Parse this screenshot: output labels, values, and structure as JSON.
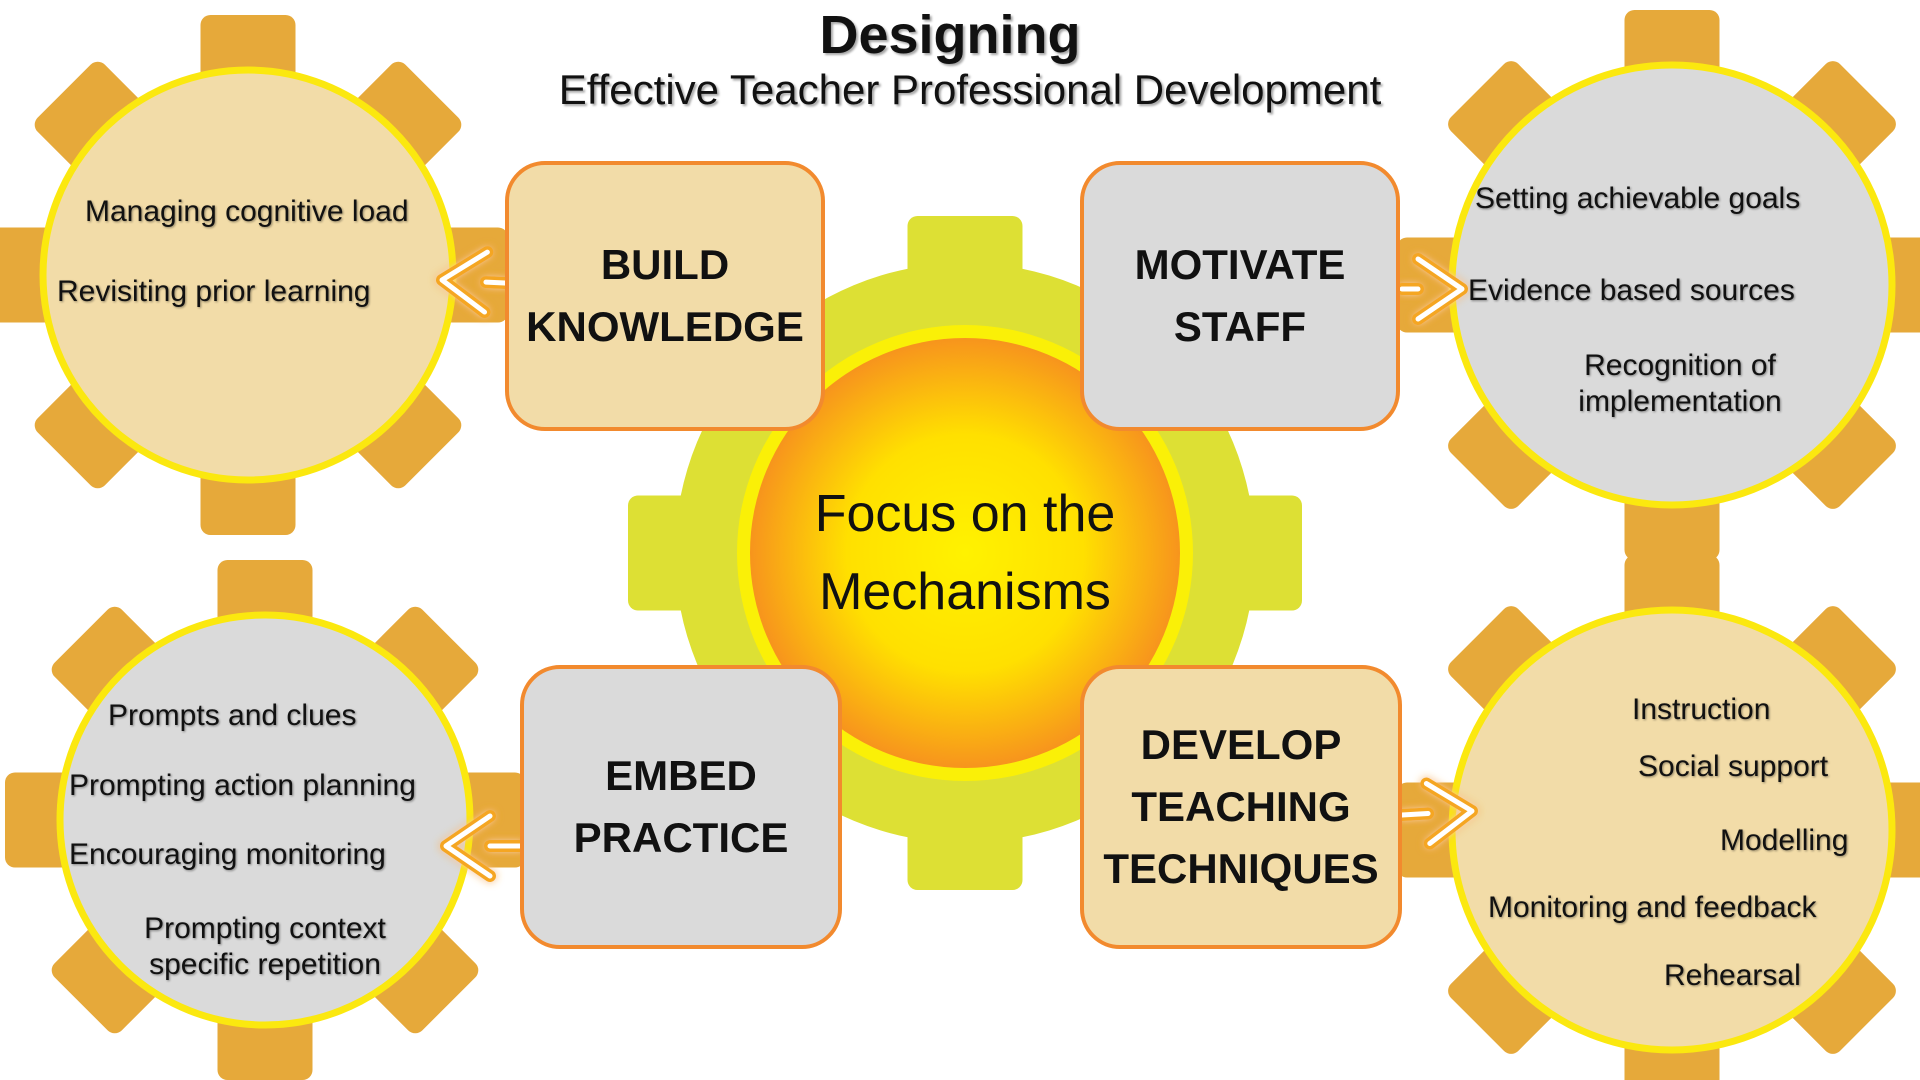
{
  "title": "Designing",
  "subtitle": "Effective Teacher Professional Development",
  "center": {
    "line1": "Focus on the",
    "line2": "Mechanisms"
  },
  "mechanisms": {
    "build": {
      "line1": "BUILD",
      "line2": "KNOWLEDGE",
      "items": [
        "Managing cognitive load",
        "Revisiting prior learning"
      ]
    },
    "motivate": {
      "line1": "MOTIVATE",
      "line2": "STAFF",
      "items": [
        "Setting achievable goals",
        "Evidence based sources",
        "Recognition of implementation"
      ]
    },
    "embed": {
      "line1": "EMBED",
      "line2": "PRACTICE",
      "items": [
        "Prompts and clues",
        "Prompting action planning",
        "Encouraging monitoring",
        "Prompting context specific repetition"
      ]
    },
    "develop": {
      "line1": "DEVELOP",
      "line2": "TEACHING",
      "line3": "TECHNIQUES",
      "items": [
        "Instruction",
        "Social support",
        "Modelling",
        "Monitoring and feedback",
        "Rehearsal"
      ]
    }
  },
  "colors": {
    "gear_orange": "#e6a93a",
    "gear_lime": "#dde034",
    "circle_border": "#fbe80f",
    "circle_tan": "#f2dca8",
    "circle_gray": "#dadada",
    "box_border": "#f28a2e",
    "sun_core": "#ffee00",
    "sun_edge": "#f7941d",
    "arrow": "#f5a623"
  }
}
